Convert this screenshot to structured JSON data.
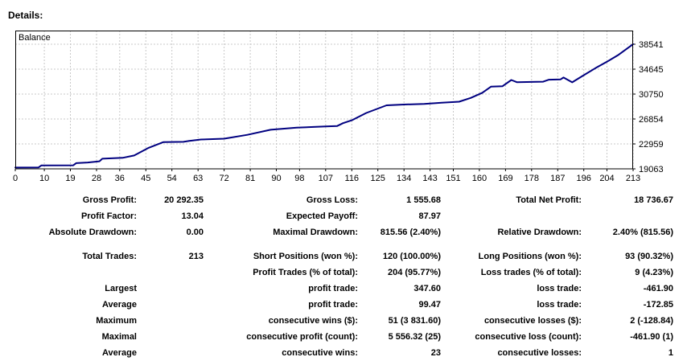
{
  "page": {
    "details_label": "Details:"
  },
  "chart_data": {
    "type": "line",
    "legend": "Balance",
    "line_color": "#000080",
    "grid_color": "#c8c8c8",
    "axis_color": "#000000",
    "x_range": [
      0,
      213
    ],
    "x_ticks": [
      0,
      10,
      19,
      28,
      36,
      45,
      54,
      63,
      72,
      81,
      90,
      98,
      107,
      116,
      125,
      134,
      143,
      151,
      160,
      169,
      178,
      187,
      196,
      204,
      213
    ],
    "y_ticks": [
      19063,
      22959,
      26854,
      30750,
      34645,
      38541
    ],
    "y_axis": {
      "bottom_value": 19063,
      "top_value": 38541
    },
    "points": [
      [
        0,
        19260
      ],
      [
        8,
        19280
      ],
      [
        9,
        19600
      ],
      [
        20,
        19620
      ],
      [
        21,
        19950
      ],
      [
        25,
        20060
      ],
      [
        29,
        20240
      ],
      [
        30,
        20650
      ],
      [
        37,
        20780
      ],
      [
        41,
        21150
      ],
      [
        46,
        22350
      ],
      [
        51,
        23230
      ],
      [
        58,
        23290
      ],
      [
        60,
        23420
      ],
      [
        64,
        23650
      ],
      [
        72,
        23780
      ],
      [
        80,
        24380
      ],
      [
        88,
        25170
      ],
      [
        97,
        25500
      ],
      [
        107,
        25680
      ],
      [
        111,
        25760
      ],
      [
        113,
        26200
      ],
      [
        116,
        26650
      ],
      [
        121,
        27800
      ],
      [
        128,
        28990
      ],
      [
        134,
        29120
      ],
      [
        141,
        29200
      ],
      [
        147,
        29400
      ],
      [
        153,
        29560
      ],
      [
        157,
        30150
      ],
      [
        161,
        30950
      ],
      [
        164,
        31900
      ],
      [
        168,
        31980
      ],
      [
        171,
        32950
      ],
      [
        173,
        32600
      ],
      [
        178,
        32650
      ],
      [
        182,
        32680
      ],
      [
        184,
        33000
      ],
      [
        188,
        33050
      ],
      [
        189,
        33340
      ],
      [
        192,
        32590
      ],
      [
        196,
        33700
      ],
      [
        200,
        34800
      ],
      [
        204,
        35800
      ],
      [
        208,
        36900
      ],
      [
        213,
        38550
      ]
    ]
  },
  "stats": {
    "rows": [
      {
        "c1l": "Gross Profit:",
        "c1v": "20 292.35",
        "c2l": "Gross Loss:",
        "c2v": "1 555.68",
        "c3l": "Total Net Profit:",
        "c3v": "18 736.67"
      },
      {
        "c1l": "Profit Factor:",
        "c1v": "13.04",
        "c2l": "Expected Payoff:",
        "c2v": "87.97",
        "c3l": "",
        "c3v": ""
      },
      {
        "c1l": "Absolute Drawdown:",
        "c1v": "0.00",
        "c2l": "Maximal Drawdown:",
        "c2v": "815.56 (2.40%)",
        "c3l": "Relative Drawdown:",
        "c3v": "2.40% (815.56)"
      },
      {
        "gap": true
      },
      {
        "c1l": "Total Trades:",
        "c1v": "213",
        "c2l": "Short Positions (won %):",
        "c2v": "120 (100.00%)",
        "c3l": "Long Positions (won %):",
        "c3v": "93 (90.32%)"
      },
      {
        "c1l": "",
        "c1v": "",
        "c2l": "Profit Trades (% of total):",
        "c2v": "204 (95.77%)",
        "c3l": "Loss trades (% of total):",
        "c3v": "9 (4.23%)"
      },
      {
        "c1l": "Largest",
        "c1v": "",
        "c2l": "profit trade:",
        "c2v": "347.60",
        "c3l": "loss trade:",
        "c3v": "-461.90"
      },
      {
        "c1l": "Average",
        "c1v": "",
        "c2l": "profit trade:",
        "c2v": "99.47",
        "c3l": "loss trade:",
        "c3v": "-172.85"
      },
      {
        "c1l": "Maximum",
        "c1v": "",
        "c2l": "consecutive wins ($):",
        "c2v": "51 (3 831.60)",
        "c3l": "consecutive losses ($):",
        "c3v": "2 (-128.84)"
      },
      {
        "c1l": "Maximal",
        "c1v": "",
        "c2l": "consecutive profit (count):",
        "c2v": "5 556.32 (25)",
        "c3l": "consecutive loss (count):",
        "c3v": "-461.90 (1)"
      },
      {
        "c1l": "Average",
        "c1v": "",
        "c2l": "consecutive wins:",
        "c2v": "23",
        "c3l": "consecutive losses:",
        "c3v": "1"
      }
    ]
  }
}
